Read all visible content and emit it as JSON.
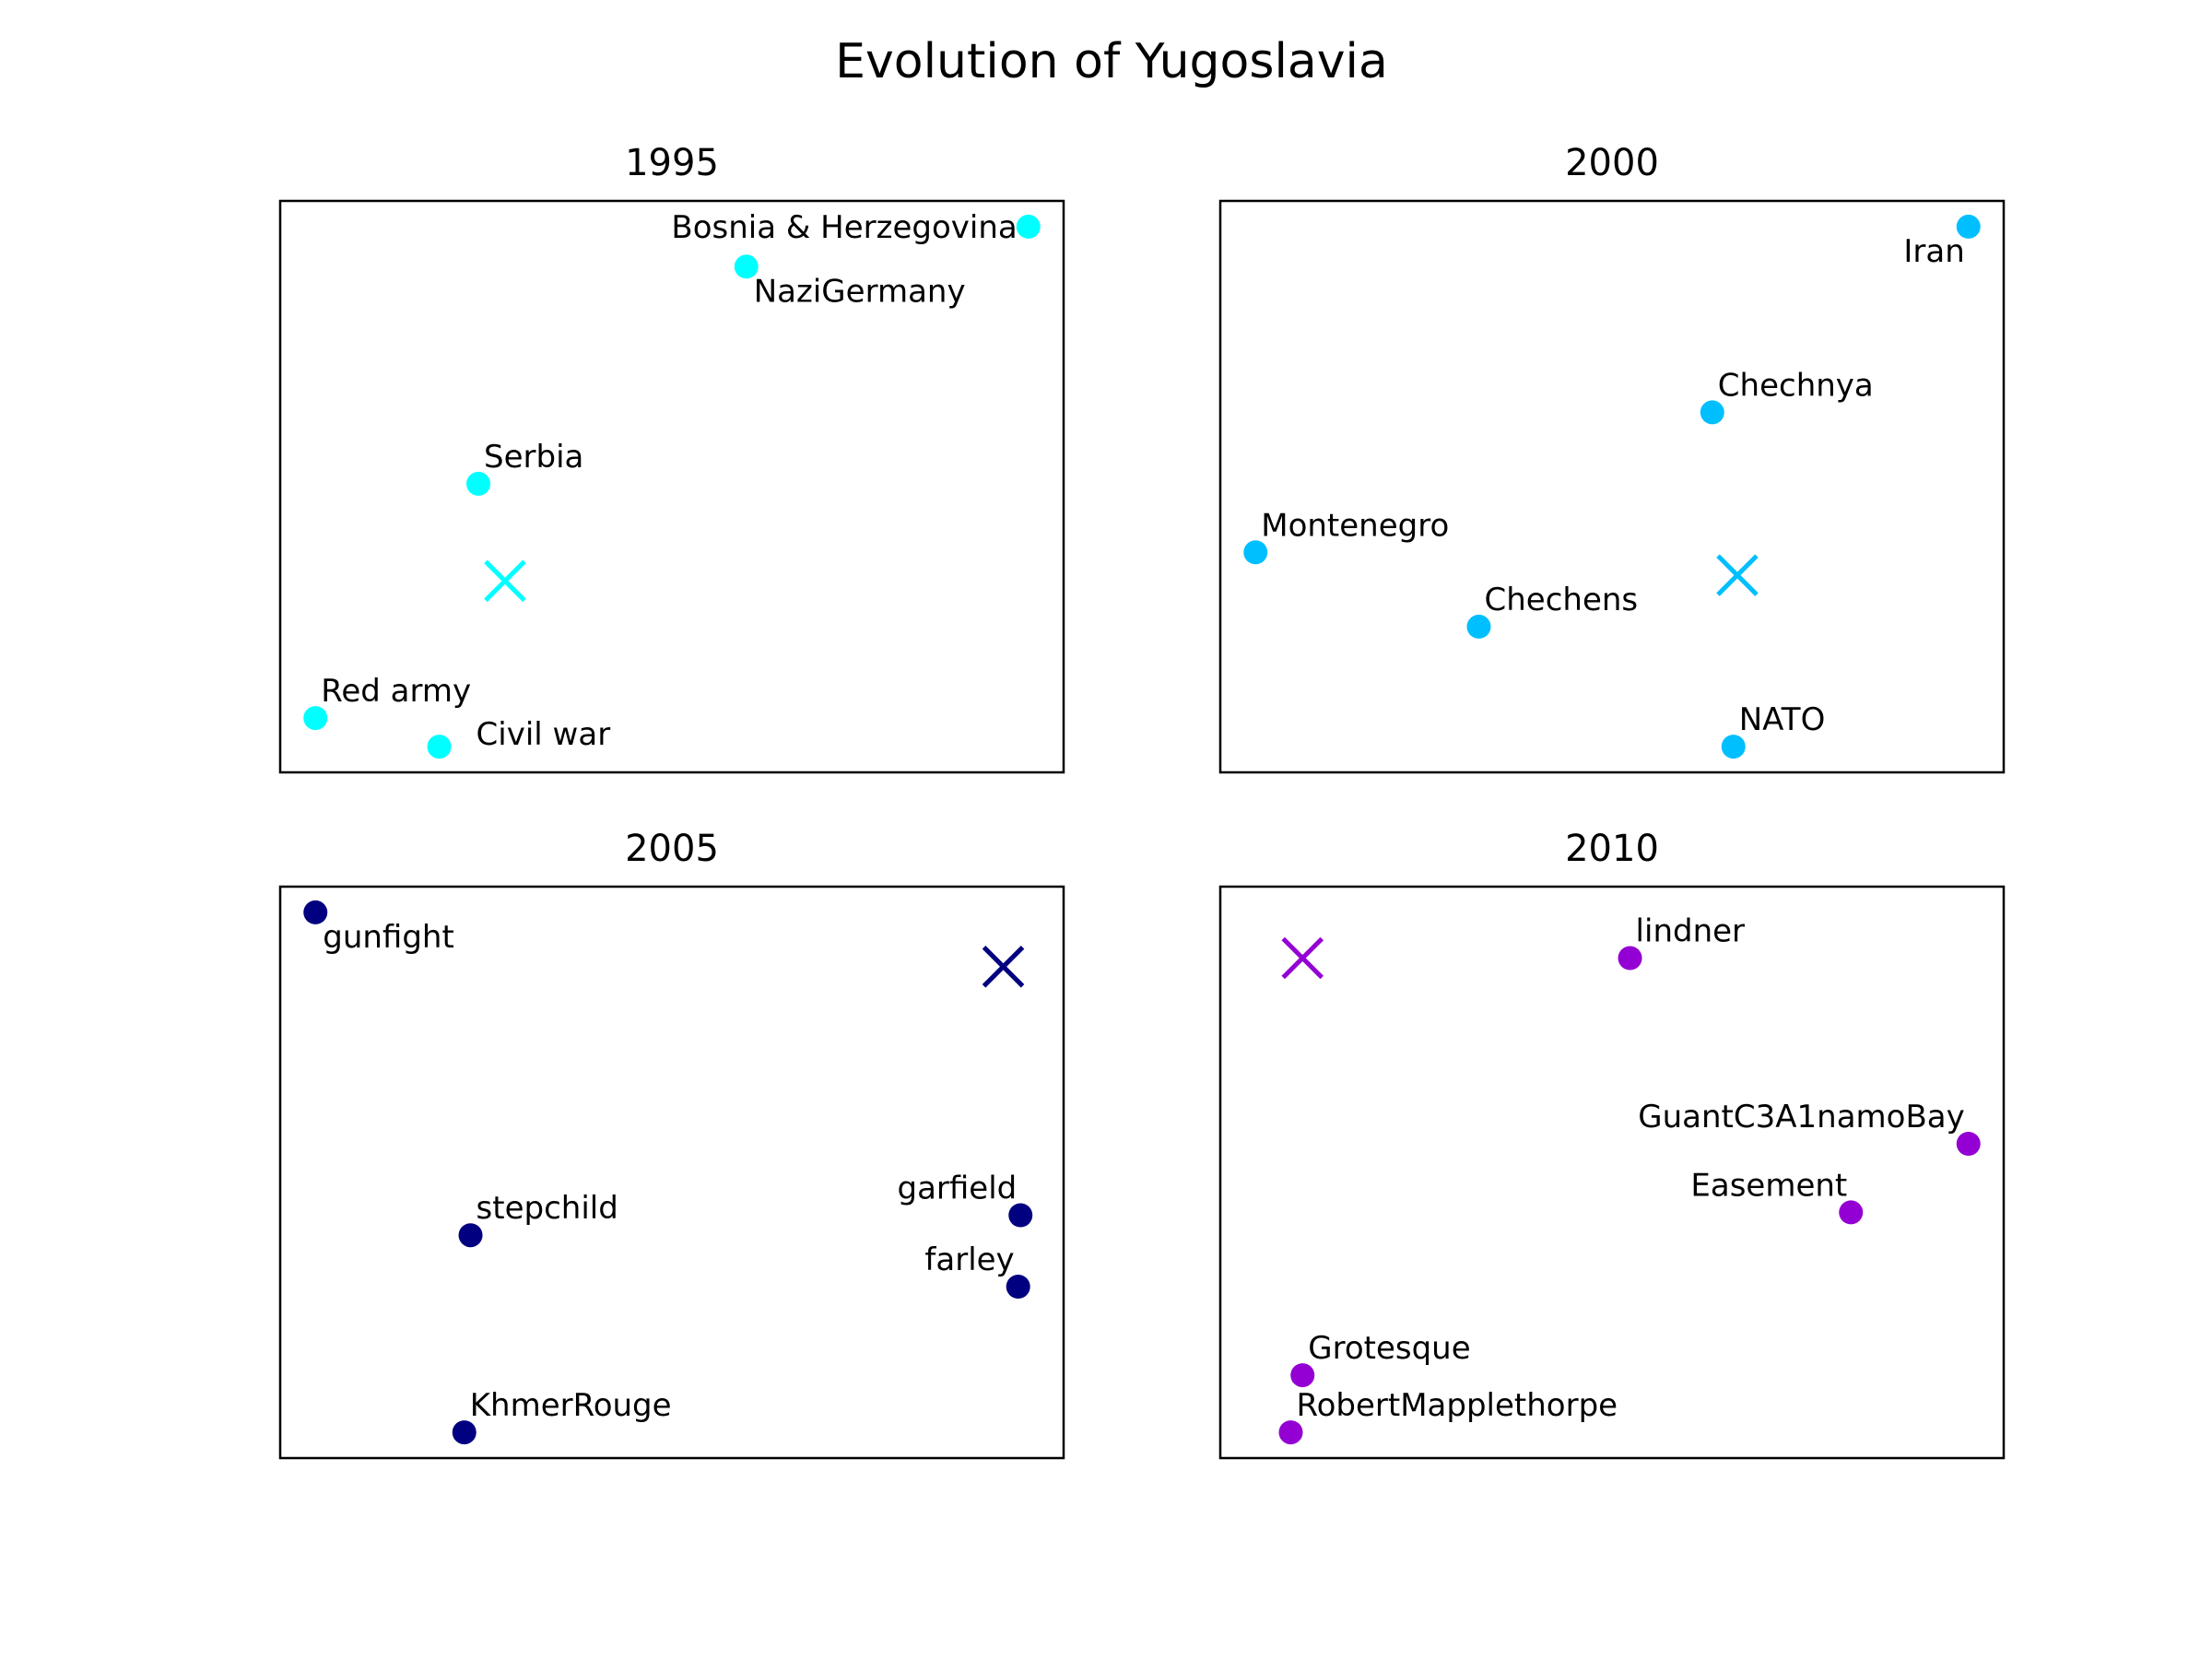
{
  "title": "Evolution of Yugoslavia",
  "chart_data": [
    {
      "type": "scatter",
      "title": "1995",
      "color": "#00ffff",
      "xlim": [
        0,
        100
      ],
      "ylim": [
        0,
        100
      ],
      "axes_visible": false,
      "grid": false,
      "points": [
        {
          "label": "Bosnia & Herzegovina",
          "x": 95.5,
          "y": 95.5,
          "anchor": "end"
        },
        {
          "label": "NaziGermany",
          "x": 59.5,
          "y": 88.5,
          "anchor": "below-right"
        },
        {
          "label": "Serbia",
          "x": 25.3,
          "y": 50.5,
          "anchor": "above-right"
        },
        {
          "label": "Red army",
          "x": 4.5,
          "y": 9.5,
          "anchor": "above-right"
        },
        {
          "label": "Civil war",
          "x": 20.3,
          "y": 4.5,
          "anchor": "right"
        }
      ],
      "centroid": {
        "x": 28.7,
        "y": 33.5
      }
    },
    {
      "type": "scatter",
      "title": "2000",
      "color": "#00bfff",
      "xlim": [
        0,
        100
      ],
      "ylim": [
        0,
        100
      ],
      "axes_visible": false,
      "grid": false,
      "points": [
        {
          "label": "Iran",
          "x": 95.5,
          "y": 95.5,
          "anchor": "below-left"
        },
        {
          "label": "Chechnya",
          "x": 62.8,
          "y": 63.0,
          "anchor": "above-right"
        },
        {
          "label": "Montenegro",
          "x": 4.5,
          "y": 38.5,
          "anchor": "above-right"
        },
        {
          "label": "Chechens",
          "x": 33.0,
          "y": 25.5,
          "anchor": "above-right"
        },
        {
          "label": "NATO",
          "x": 65.5,
          "y": 4.5,
          "anchor": "above-right"
        }
      ],
      "centroid": {
        "x": 66.0,
        "y": 34.5
      }
    },
    {
      "type": "scatter",
      "title": "2005",
      "color": "#000080",
      "xlim": [
        0,
        100
      ],
      "ylim": [
        0,
        100
      ],
      "axes_visible": false,
      "grid": false,
      "points": [
        {
          "label": "gunfight",
          "x": 4.5,
          "y": 95.5,
          "anchor": "below-right"
        },
        {
          "label": "stepchild",
          "x": 24.3,
          "y": 39.0,
          "anchor": "above-right"
        },
        {
          "label": "garfield",
          "x": 94.5,
          "y": 42.5,
          "anchor": "above-left"
        },
        {
          "label": "farley",
          "x": 94.2,
          "y": 30.0,
          "anchor": "above-left"
        },
        {
          "label": "KhmerRouge",
          "x": 23.5,
          "y": 4.5,
          "anchor": "above-right"
        }
      ],
      "centroid": {
        "x": 92.3,
        "y": 86.0
      }
    },
    {
      "type": "scatter",
      "title": "2010",
      "color": "#9400d3",
      "xlim": [
        0,
        100
      ],
      "ylim": [
        0,
        100
      ],
      "axes_visible": false,
      "grid": false,
      "points": [
        {
          "label": "lindner",
          "x": 52.3,
          "y": 87.5,
          "anchor": "above-right"
        },
        {
          "label": "GuantC3A1namoBay",
          "x": 95.5,
          "y": 55.0,
          "anchor": "above-left"
        },
        {
          "label": "Easement",
          "x": 80.5,
          "y": 43.0,
          "anchor": "above-left"
        },
        {
          "label": "Grotesque",
          "x": 10.5,
          "y": 14.5,
          "anchor": "above-right"
        },
        {
          "label": "RobertMapplethorpe",
          "x": 9.0,
          "y": 4.5,
          "anchor": "above-right"
        }
      ],
      "centroid": {
        "x": 10.5,
        "y": 87.5
      }
    }
  ]
}
